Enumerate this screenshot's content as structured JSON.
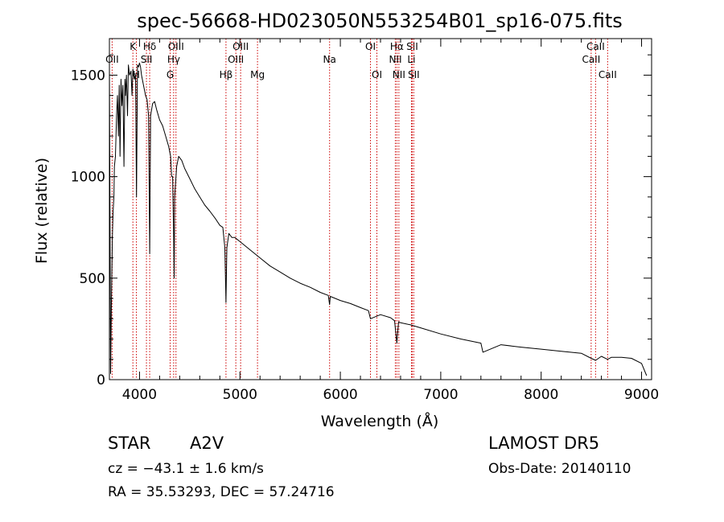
{
  "chart_data": {
    "type": "line",
    "title": "spec-56668-HD023050N553254B01_sp16-075.fits",
    "xlabel": "Wavelength (Å)",
    "ylabel": "Flux (relative)",
    "xlim": [
      3700,
      9100
    ],
    "ylim": [
      0,
      1680
    ],
    "x_ticks": [
      4000,
      5000,
      6000,
      7000,
      8000,
      9000
    ],
    "y_ticks": [
      0,
      500,
      1000,
      1500
    ],
    "grid": false,
    "series": [
      {
        "x": [
          3700,
          3712,
          3720,
          3730,
          3736,
          3745,
          3750,
          3760,
          3771,
          3780,
          3790,
          3798,
          3806,
          3815,
          3825,
          3835,
          3845,
          3855,
          3860,
          3870,
          3880,
          3889,
          3900,
          3915,
          3925,
          3934,
          3940,
          3950,
          3960,
          3970,
          3980,
          3990,
          4000,
          4010,
          4020,
          4040,
          4060,
          4075,
          4090,
          4101,
          4110,
          4130,
          4150,
          4170,
          4200,
          4230,
          4260,
          4290,
          4310,
          4320,
          4330,
          4340,
          4345,
          4350,
          4370,
          4390,
          4420,
          4450,
          4500,
          4550,
          4600,
          4650,
          4700,
          4760,
          4800,
          4830,
          4850,
          4861,
          4870,
          4890,
          4920,
          4950,
          5000,
          5100,
          5200,
          5300,
          5400,
          5500,
          5600,
          5700,
          5800,
          5880,
          5893,
          5900,
          6000,
          6100,
          6200,
          6280,
          6300,
          6400,
          6500,
          6540,
          6563,
          6580,
          6600,
          6700,
          6800,
          7000,
          7200,
          7400,
          7420,
          7600,
          7800,
          8000,
          8200,
          8400,
          8498,
          8542,
          8600,
          8662,
          8700,
          8800,
          8900,
          9000,
          9050
        ],
        "y": [
          1550,
          30,
          380,
          700,
          820,
          900,
          1050,
          1100,
          1300,
          1400,
          1200,
          1450,
          1100,
          1480,
          1350,
          1450,
          1050,
          1480,
          1400,
          1500,
          1300,
          1550,
          1500,
          1520,
          1400,
          1530,
          1500,
          1480,
          1500,
          900,
          1550,
          1540,
          1560,
          1540,
          1500,
          1450,
          1400,
          1380,
          1300,
          620,
          1300,
          1360,
          1370,
          1330,
          1280,
          1250,
          1200,
          1150,
          1100,
          1000,
          1000,
          700,
          500,
          900,
          1050,
          1100,
          1080,
          1040,
          990,
          940,
          900,
          860,
          830,
          790,
          760,
          750,
          650,
          380,
          650,
          720,
          700,
          700,
          680,
          640,
          600,
          560,
          530,
          500,
          475,
          455,
          430,
          415,
          370,
          410,
          390,
          375,
          355,
          340,
          300,
          320,
          305,
          290,
          180,
          285,
          280,
          270,
          255,
          225,
          200,
          180,
          135,
          172,
          160,
          150,
          140,
          130,
          105,
          95,
          115,
          100,
          110,
          110,
          105,
          80,
          20
        ]
      }
    ],
    "lines": [
      {
        "label": "Hδ",
        "x": 4101,
        "row": 1
      },
      {
        "label": "Hα",
        "x": 6563,
        "row": 1
      },
      {
        "label": "Hβ",
        "x": 4861,
        "row": 3
      },
      {
        "label": "Hγ",
        "x": 4340,
        "row": 2
      },
      {
        "label": "K",
        "x": 3934,
        "row": 1
      },
      {
        "label": "H",
        "x": 3969,
        "row": 3
      },
      {
        "label": "G",
        "x": 4305,
        "row": 3
      },
      {
        "label": "Mg",
        "x": 5175,
        "row": 3
      },
      {
        "label": "Na",
        "x": 5893,
        "row": 2
      },
      {
        "label": "OII",
        "x": 3727,
        "row": 2
      },
      {
        "label": "OIII",
        "x": 4363,
        "row": 1
      },
      {
        "label": "OIII",
        "x": 4959,
        "row": 2
      },
      {
        "label": "OIII",
        "x": 5007,
        "row": 1
      },
      {
        "label": "OI",
        "x": 6300,
        "row": 1
      },
      {
        "label": "OI",
        "x": 6364,
        "row": 3
      },
      {
        "label": "NII",
        "x": 6548,
        "row": 2
      },
      {
        "label": "NII",
        "x": 6583,
        "row": 3
      },
      {
        "label": "SII",
        "x": 4069,
        "row": 2
      },
      {
        "label": "SII",
        "x": 6716,
        "row": 1
      },
      {
        "label": "SII",
        "x": 6731,
        "row": 3
      },
      {
        "label": "Li",
        "x": 6708,
        "row": 2
      },
      {
        "label": "CaII",
        "x": 8498,
        "row": 2
      },
      {
        "label": "CaII",
        "x": 8542,
        "row": 1
      },
      {
        "label": "CaII",
        "x": 8662,
        "row": 3
      }
    ],
    "colors": {
      "spectrum": "#000000",
      "line_markers": "#cc0000",
      "axes": "#000000"
    }
  },
  "info": {
    "object": "STAR",
    "subclass": "A2V",
    "survey": "LAMOST DR5",
    "cz": "cz = −43.1 ± 1.6 km/s",
    "obs_date": "Obs-Date: 20140110",
    "radec": "RA =  35.53293, DEC =  57.24716"
  }
}
